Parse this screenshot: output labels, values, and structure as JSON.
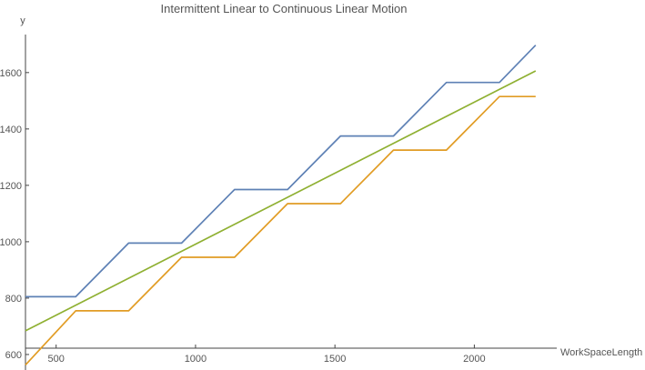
{
  "chart_data": {
    "type": "line",
    "title": "Intermittent Linear to Continuous Linear Motion",
    "xlabel": "WorkSpaceLength",
    "ylabel": "y",
    "xlim": [
      390,
      2250
    ],
    "ylim": [
      545,
      1780
    ],
    "x_ticks": [
      500,
      1000,
      1500,
      2000
    ],
    "y_ticks": [
      600,
      800,
      1000,
      1200,
      1400,
      1600
    ],
    "grid": false,
    "series": [
      {
        "color": "#5E81B5",
        "x": [
          390,
          570,
          760,
          950,
          1140,
          1330,
          1520,
          1710,
          1900,
          2090,
          2220
        ],
        "y": [
          805,
          805,
          995,
          995,
          1185,
          1185,
          1375,
          1375,
          1565,
          1565,
          1697
        ]
      },
      {
        "color": "#E19C24",
        "x": [
          390,
          570,
          760,
          950,
          1140,
          1330,
          1520,
          1710,
          1900,
          2090,
          2220
        ],
        "y": [
          563,
          755,
          755,
          945,
          945,
          1135,
          1135,
          1325,
          1325,
          1515,
          1515
        ]
      },
      {
        "color": "#8FB032",
        "x": [
          390,
          2220
        ],
        "y": [
          684,
          1606
        ]
      }
    ]
  }
}
